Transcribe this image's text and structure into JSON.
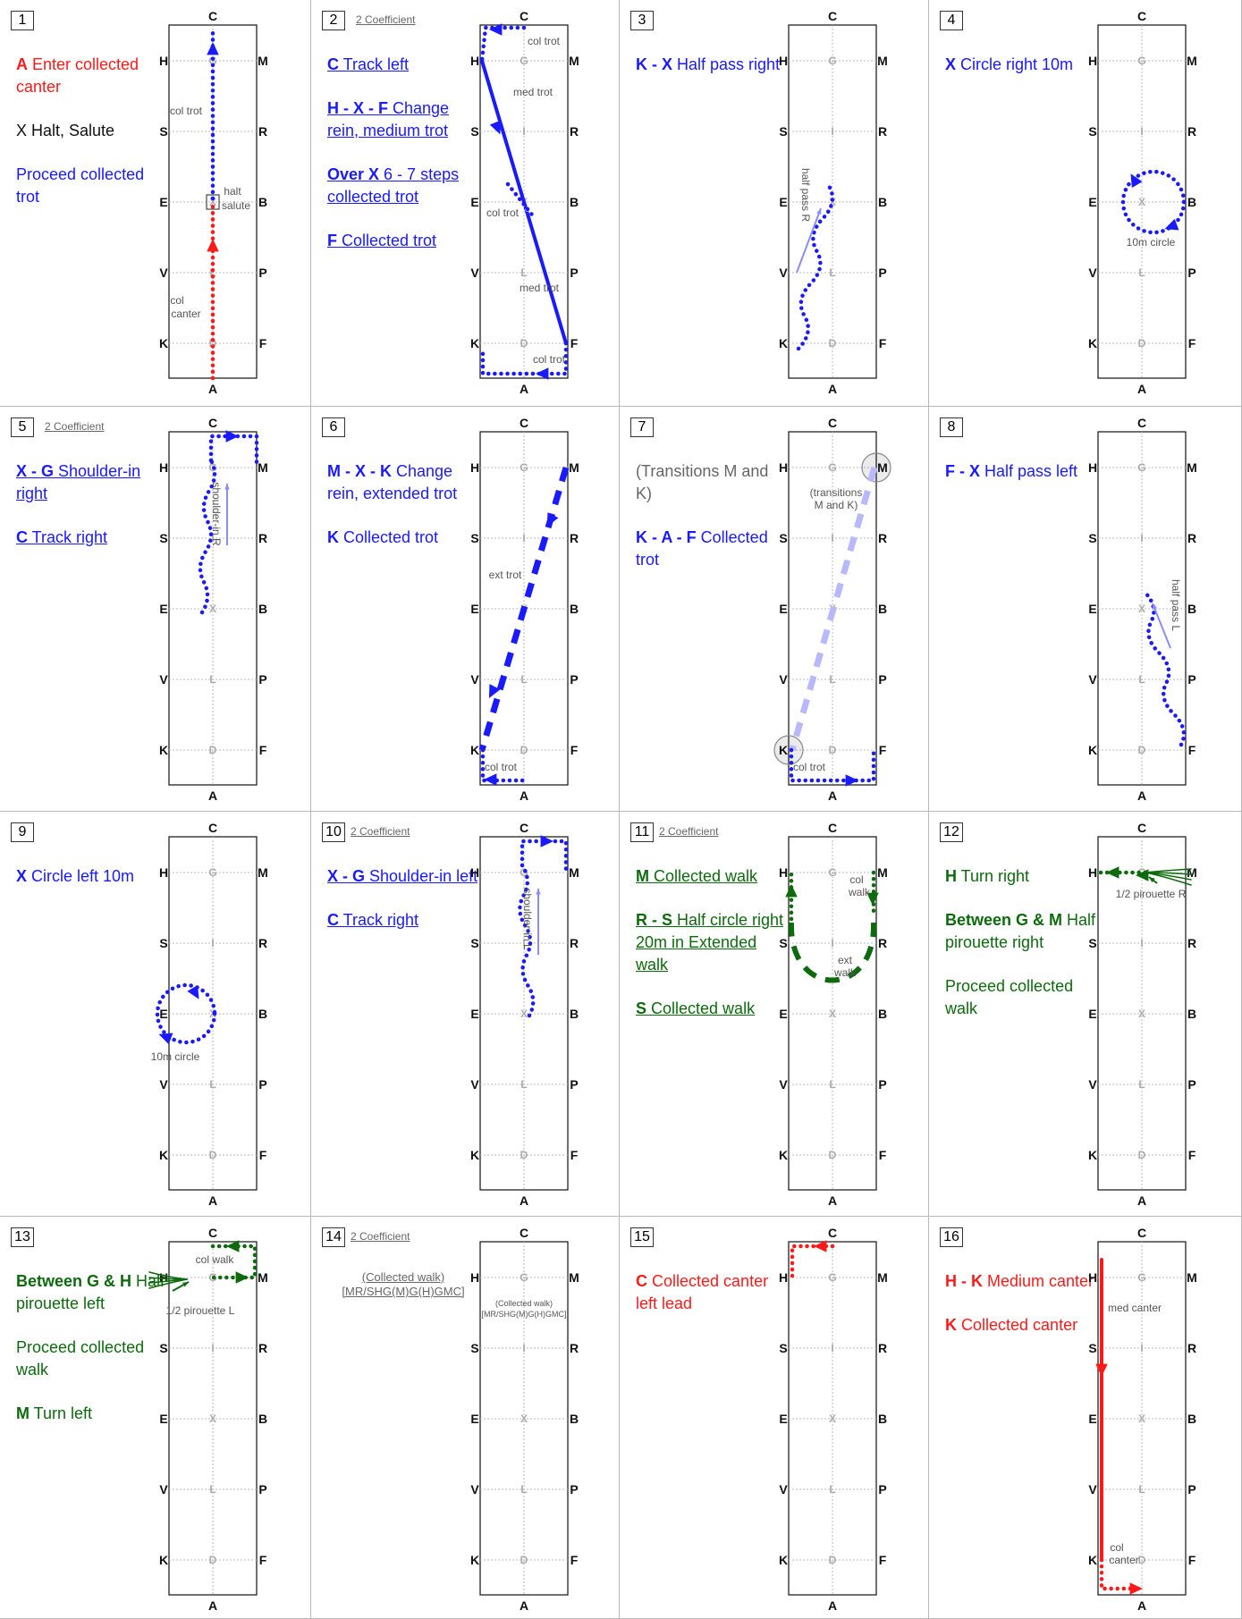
{
  "arena_letters": {
    "top": "C",
    "bottom": "A",
    "left": [
      "H",
      "S",
      "E",
      "V",
      "K"
    ],
    "right": [
      "M",
      "R",
      "B",
      "P",
      "F"
    ],
    "inner": [
      "G",
      "I",
      "X",
      "L",
      "D"
    ]
  },
  "colors": {
    "red": "#ff1a1a",
    "blue": "#1a1aff",
    "green": "#0d6b0d",
    "light_blue": "#8c8cff"
  },
  "movements": [
    {
      "num": "1",
      "coef": "",
      "lines": [
        {
          "k": "A",
          "t": " Enter collected canter",
          "c": "red"
        },
        {
          "k": "",
          "t": "X Halt, Salute",
          "c": "black"
        },
        {
          "k": "",
          "t": "Proceed collected trot",
          "c": "blue"
        }
      ],
      "notes": [
        "col trot",
        "halt",
        "salute",
        "col",
        "canter"
      ]
    },
    {
      "num": "2",
      "coef": "2 Coefficient",
      "lines": [
        {
          "k": "C",
          "t": " Track left",
          "c": "blue",
          "u": true
        },
        {
          "k": "H - X - F",
          "t": " Change rein, medium trot",
          "c": "blue",
          "u": true
        },
        {
          "k": "Over X",
          "t": " 6 - 7 steps collected trot",
          "c": "blue",
          "u": true
        },
        {
          "k": "F",
          "t": " Collected trot",
          "c": "blue",
          "u": true
        }
      ],
      "notes": [
        "col trot",
        "med trot",
        "col trot",
        "med trot",
        "col trot"
      ]
    },
    {
      "num": "3",
      "coef": "",
      "lines": [
        {
          "k": "K - X",
          "t": " Half pass right",
          "c": "blue"
        }
      ],
      "notes": [
        "half pass R"
      ]
    },
    {
      "num": "4",
      "coef": "",
      "lines": [
        {
          "k": "X",
          "t": " Circle right 10m",
          "c": "blue"
        }
      ],
      "notes": [
        "10m circle"
      ]
    },
    {
      "num": "5",
      "coef": "2 Coefficient",
      "lines": [
        {
          "k": "X - G",
          "t": " Shoulder-in right",
          "c": "blue",
          "u": true
        },
        {
          "k": "C",
          "t": " Track right",
          "c": "blue",
          "u": true
        }
      ],
      "notes": [
        "shoulder-in R"
      ]
    },
    {
      "num": "6",
      "coef": "",
      "lines": [
        {
          "k": "M - X - K",
          "t": " Change rein, extended trot",
          "c": "blue"
        },
        {
          "k": "K",
          "t": " Collected trot",
          "c": "blue"
        }
      ],
      "notes": [
        "ext trot",
        "col trot"
      ]
    },
    {
      "num": "7",
      "coef": "",
      "lines": [
        {
          "k": "",
          "t": "(Transitions M and K)",
          "c": "gray"
        },
        {
          "k": "K - A - F",
          "t": " Collected trot",
          "c": "blue"
        }
      ],
      "notes": [
        "(transitions",
        "M and K)",
        "col trot"
      ]
    },
    {
      "num": "8",
      "coef": "",
      "lines": [
        {
          "k": "F - X",
          "t": " Half pass left",
          "c": "blue"
        }
      ],
      "notes": [
        "half pass L"
      ]
    },
    {
      "num": "9",
      "coef": "",
      "lines": [
        {
          "k": "X",
          "t": " Circle left 10m",
          "c": "blue"
        }
      ],
      "notes": [
        "10m circle"
      ]
    },
    {
      "num": "10",
      "coef": "2 Coefficient",
      "lines": [
        {
          "k": "X - G",
          "t": " Shoulder-in left",
          "c": "blue",
          "u": true
        },
        {
          "k": "C",
          "t": " Track right",
          "c": "blue",
          "u": true
        }
      ],
      "notes": [
        "shoulder-in L"
      ]
    },
    {
      "num": "11",
      "coef": "2 Coefficient",
      "lines": [
        {
          "k": "M",
          "t": " Collected walk",
          "c": "green",
          "u": true
        },
        {
          "k": "R - S",
          "t": " Half circle right 20m in Extended walk",
          "c": "green",
          "u": true
        },
        {
          "k": "S",
          "t": " Collected walk",
          "c": "green",
          "u": true
        }
      ],
      "notes": [
        "col",
        "walk",
        "ext",
        "walk"
      ]
    },
    {
      "num": "12",
      "coef": "",
      "lines": [
        {
          "k": "H",
          "t": " Turn right",
          "c": "green"
        },
        {
          "k": "Between G & M",
          "t": " Half pirouette right",
          "c": "green"
        },
        {
          "k": "",
          "t": "Proceed collected walk",
          "c": "green"
        }
      ],
      "notes": [
        "1/2 pirouette R"
      ]
    },
    {
      "num": "13",
      "coef": "",
      "lines": [
        {
          "k": "Between G & H",
          "t": " Half pirouette left",
          "c": "green"
        },
        {
          "k": "",
          "t": "Proceed collected walk",
          "c": "green"
        },
        {
          "k": "M",
          "t": " Turn left",
          "c": "green"
        }
      ],
      "notes": [
        "col walk",
        "1/2 pirouette L"
      ]
    },
    {
      "num": "14",
      "coef": "2 Coefficient",
      "lines": [
        {
          "k": "",
          "t": "(Collected walk) [MR/SHG(M)G(H)GMC]",
          "c": "gray",
          "u": true,
          "small": true
        }
      ],
      "notes": [
        "(Collected walk)",
        "[MR/SHG(M)G(H)GMC]"
      ]
    },
    {
      "num": "15",
      "coef": "",
      "lines": [
        {
          "k": "C",
          "t": " Collected canter left lead",
          "c": "red"
        }
      ],
      "notes": []
    },
    {
      "num": "16",
      "coef": "",
      "lines": [
        {
          "k": "H - K",
          "t": " Medium canter",
          "c": "red"
        },
        {
          "k": "K",
          "t": " Collected canter",
          "c": "red"
        }
      ],
      "notes": [
        "med canter",
        "col",
        "canter"
      ]
    }
  ]
}
